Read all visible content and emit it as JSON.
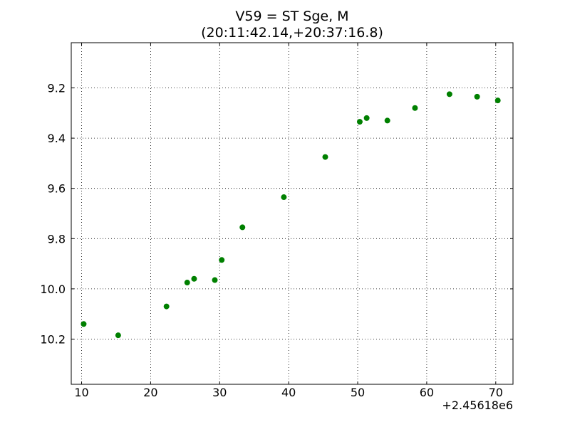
{
  "chart_data": {
    "type": "scatter",
    "title": "V59 = ST Sge, M",
    "subtitle": "(20:11:42.14,+20:37:16.8)",
    "xlabel": "",
    "ylabel": "",
    "x_offset_label": "+2.45618e6",
    "xlim": [
      8.5,
      72.5
    ],
    "ylim": [
      10.38,
      9.02
    ],
    "y_inverted": true,
    "grid": true,
    "marker_color": "#008000",
    "x_ticks": [
      10,
      20,
      30,
      40,
      50,
      60,
      70
    ],
    "x_tick_labels": [
      "10",
      "20",
      "30",
      "40",
      "50",
      "60",
      "70"
    ],
    "y_ticks": [
      9.2,
      9.4,
      9.6,
      9.8,
      10.0,
      10.2
    ],
    "y_tick_labels": [
      "9.2",
      "9.4",
      "9.6",
      "9.8",
      "10.0",
      "10.2"
    ],
    "series": [
      {
        "x": [
          10.3,
          15.3,
          22.3,
          25.3,
          26.3,
          29.3,
          30.3,
          33.3,
          39.3,
          45.3,
          50.3,
          51.3,
          54.3,
          58.3,
          63.3,
          67.3,
          70.3
        ],
        "y": [
          10.14,
          10.185,
          10.07,
          9.975,
          9.96,
          9.965,
          9.885,
          9.755,
          9.635,
          9.475,
          9.335,
          9.32,
          9.33,
          9.28,
          9.225,
          9.235,
          9.25
        ]
      }
    ]
  }
}
